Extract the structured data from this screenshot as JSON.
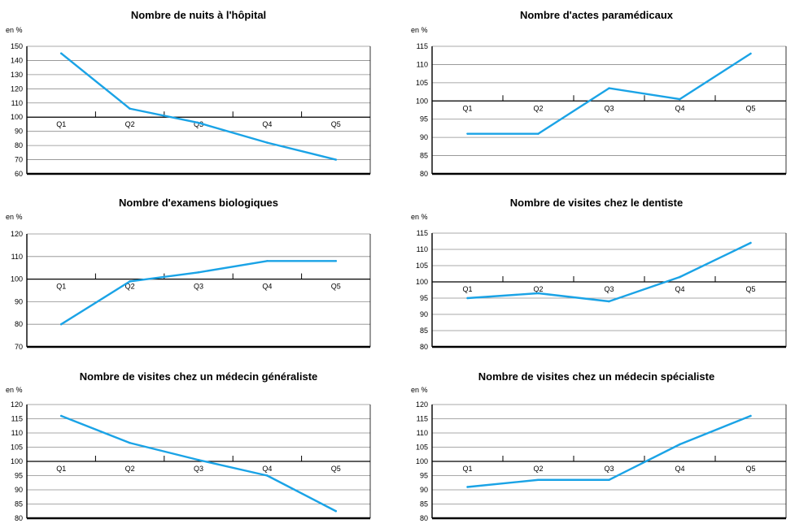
{
  "chart_data": [
    {
      "type": "line",
      "title": "Nombre de nuits à l'hôpital",
      "unit_label": "en %",
      "categories": [
        "Q1",
        "Q2",
        "Q3",
        "Q4",
        "Q5"
      ],
      "values": [
        145,
        106,
        96,
        82,
        70
      ],
      "ylim": [
        60,
        150
      ],
      "yticks": [
        60,
        70,
        80,
        90,
        100,
        110,
        120,
        130,
        140,
        150
      ],
      "color": "#1aa3e6",
      "grid": true
    },
    {
      "type": "line",
      "title": "Nombre d'actes paramédicaux",
      "unit_label": "en %",
      "categories": [
        "Q1",
        "Q2",
        "Q3",
        "Q4",
        "Q5"
      ],
      "values": [
        91,
        91,
        103.5,
        100.5,
        113
      ],
      "ylim": [
        80,
        115
      ],
      "yticks": [
        80,
        85,
        90,
        95,
        100,
        105,
        110,
        115
      ],
      "color": "#1aa3e6",
      "grid": true
    },
    {
      "type": "line",
      "title": "Nombre d'examens biologiques",
      "unit_label": "en %",
      "categories": [
        "Q1",
        "Q2",
        "Q3",
        "Q4",
        "Q5"
      ],
      "values": [
        80,
        99,
        103,
        108,
        108
      ],
      "ylim": [
        70,
        120
      ],
      "yticks": [
        70,
        80,
        90,
        100,
        110,
        120
      ],
      "color": "#1aa3e6",
      "grid": true
    },
    {
      "type": "line",
      "title": "Nombre de visites chez le dentiste",
      "unit_label": "en %",
      "categories": [
        "Q1",
        "Q2",
        "Q3",
        "Q4",
        "Q5"
      ],
      "values": [
        95,
        96.5,
        94,
        101.5,
        112
      ],
      "ylim": [
        80,
        115
      ],
      "yticks": [
        80,
        85,
        90,
        95,
        100,
        105,
        110,
        115
      ],
      "color": "#1aa3e6",
      "grid": true
    },
    {
      "type": "line",
      "title": "Nombre de visites chez un médecin généraliste",
      "unit_label": "en %",
      "categories": [
        "Q1",
        "Q2",
        "Q3",
        "Q4",
        "Q5"
      ],
      "values": [
        116,
        106.5,
        100.5,
        95,
        82.5
      ],
      "ylim": [
        80,
        120
      ],
      "yticks": [
        80,
        85,
        90,
        95,
        100,
        105,
        110,
        115,
        120
      ],
      "color": "#1aa3e6",
      "grid": true
    },
    {
      "type": "line",
      "title": "Nombre de visites chez un médecin spécialiste",
      "unit_label": "en %",
      "categories": [
        "Q1",
        "Q2",
        "Q3",
        "Q4",
        "Q5"
      ],
      "values": [
        91,
        93.5,
        93.5,
        106,
        116
      ],
      "ylim": [
        80,
        120
      ],
      "yticks": [
        80,
        85,
        90,
        95,
        100,
        105,
        110,
        115,
        120
      ],
      "color": "#1aa3e6",
      "grid": true
    }
  ]
}
